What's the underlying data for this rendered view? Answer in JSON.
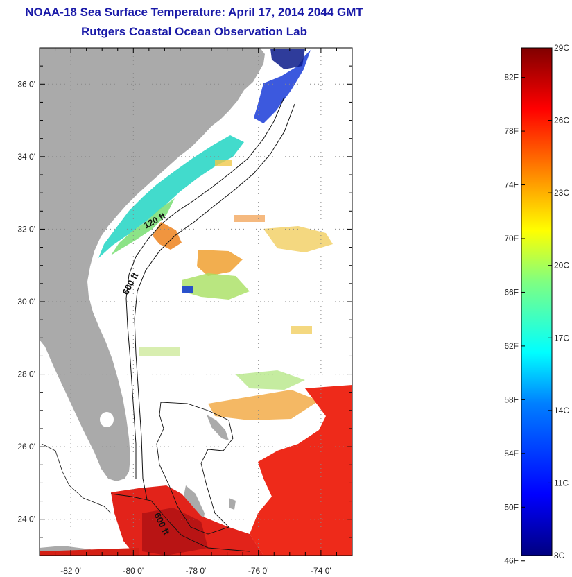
{
  "title": {
    "line1": "NOAA-18 Sea Surface Temperature:  April 17, 2014 2044 GMT",
    "line2": "Rutgers Coastal Ocean Observation Lab"
  },
  "map": {
    "lon_range": [
      -83,
      -73
    ],
    "lat_range": [
      23,
      37
    ],
    "lon_ticks": [
      {
        "value": -82,
        "label": "-82 0'"
      },
      {
        "value": -80,
        "label": "-80 0'"
      },
      {
        "value": -78,
        "label": "-78 0'"
      },
      {
        "value": -76,
        "label": "-76 0'"
      },
      {
        "value": -74,
        "label": "-74 0'"
      }
    ],
    "lat_ticks": [
      {
        "value": 36,
        "label": "36 0'"
      },
      {
        "value": 34,
        "label": "34 0'"
      },
      {
        "value": 32,
        "label": "32 0'"
      },
      {
        "value": 30,
        "label": "30 0'"
      },
      {
        "value": 28,
        "label": "28 0'"
      },
      {
        "value": 26,
        "label": "26 0'"
      },
      {
        "value": 24,
        "label": "24 0'"
      }
    ],
    "contours": {
      "label_120": "120 ft",
      "label_600a": "600 ft",
      "label_600b": "600 ft"
    },
    "colors": {
      "land": "#aaaaaa",
      "ocean_nodata": "#ffffff",
      "grid": "#888888"
    }
  },
  "colorbar": {
    "min_c": 8,
    "max_c": 29,
    "fahrenheit_labels": [
      "82F",
      "78F",
      "74F",
      "70F",
      "66F",
      "62F",
      "58F",
      "54F",
      "50F",
      "46F"
    ],
    "celsius_labels": [
      "29C",
      "26C",
      "23C",
      "20C",
      "17C",
      "14C",
      "11C",
      "8C"
    ],
    "colormap": [
      "#000080",
      "#0000ff",
      "#0080ff",
      "#00ffff",
      "#80ff80",
      "#ffff00",
      "#ff8000",
      "#ff0000",
      "#800000"
    ]
  }
}
